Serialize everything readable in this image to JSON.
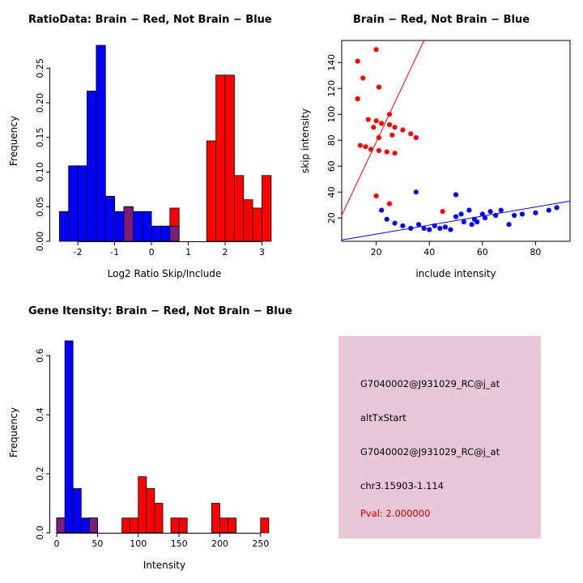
{
  "colors": {
    "red": "#ff0000",
    "blue": "#0000ff",
    "purple": "#7a1e7a",
    "info_bg": "#e8c7d8",
    "pval": "#c00000"
  },
  "chart_data": [
    {
      "type": "bar",
      "title": "RatioData: Brain − Red, Not Brain − Blue",
      "xlabel": "Log2 Ratio Skip/Include",
      "ylabel": "Frequency",
      "xlim": [
        -2.75,
        3.45
      ],
      "ylim": [
        0,
        0.29
      ],
      "xticks": [
        -2,
        -1,
        0,
        1,
        2,
        3
      ],
      "xtick_labels": [
        "-2",
        "-1",
        "0",
        "1",
        "2",
        "3"
      ],
      "yticks": [
        0,
        0.05,
        0.1,
        0.15,
        0.2,
        0.25
      ],
      "ytick_labels": [
        "0.00",
        "0.05",
        "0.10",
        "0.15",
        "0.20",
        "0.25"
      ],
      "grid": false,
      "bin_width": 0.25,
      "series": [
        {
          "name": "not-brain-blue",
          "color": "blue",
          "bars": [
            [
              -2.5,
              0.043
            ],
            [
              -2.25,
              0.109
            ],
            [
              -2.0,
              0.109
            ],
            [
              -1.75,
              0.217
            ],
            [
              -1.5,
              0.283
            ],
            [
              -1.25,
              0.065
            ],
            [
              -1.0,
              0.043
            ],
            [
              -0.75,
              0.05
            ],
            [
              -0.5,
              0.043
            ],
            [
              -0.25,
              0.043
            ],
            [
              0.0,
              0.022
            ],
            [
              0.25,
              0.022
            ]
          ]
        },
        {
          "name": "brain-red",
          "color": "red",
          "bars": [
            [
              0.5,
              0.048
            ],
            [
              1.5,
              0.145
            ],
            [
              1.75,
              0.24
            ],
            [
              2.0,
              0.24
            ],
            [
              2.25,
              0.095
            ],
            [
              2.5,
              0.06
            ],
            [
              2.75,
              0.048
            ],
            [
              3.0,
              0.095
            ]
          ]
        },
        {
          "name": "overlap-purple",
          "color": "purple",
          "bars": [
            [
              -0.75,
              0.05
            ],
            [
              0.5,
              0.022
            ]
          ]
        }
      ]
    },
    {
      "type": "scatter",
      "title": "Brain − Red, Not Brain − Blue",
      "xlabel": "include intensity",
      "ylabel": "skip intensity",
      "frame": true,
      "grid": false,
      "xlim": [
        7,
        93
      ],
      "ylim": [
        2,
        157
      ],
      "xticks": [
        20,
        40,
        60,
        80
      ],
      "xtick_labels": [
        "20",
        "40",
        "60",
        "80"
      ],
      "yticks": [
        20,
        40,
        60,
        80,
        100,
        120,
        140
      ],
      "ytick_labels": [
        "20",
        "40",
        "60",
        "80",
        "100",
        "120",
        "140"
      ],
      "lines": [
        {
          "name": "brain-fit-line",
          "color": "red",
          "from": [
            7,
            22
          ],
          "to": [
            38,
            157
          ]
        },
        {
          "name": "not-brain-fit-line",
          "color": "blue",
          "from": [
            7,
            3
          ],
          "to": [
            93,
            33
          ]
        }
      ],
      "series": [
        {
          "name": "brain-red",
          "color": "red",
          "points": [
            [
              20,
              150
            ],
            [
              13,
              141
            ],
            [
              15,
              128
            ],
            [
              21,
              121
            ],
            [
              13,
              112
            ],
            [
              25,
              100
            ],
            [
              17,
              96
            ],
            [
              20,
              95
            ],
            [
              22,
              93
            ],
            [
              25,
              92
            ],
            [
              19,
              90
            ],
            [
              27,
              90
            ],
            [
              30,
              88
            ],
            [
              33,
              85
            ],
            [
              26,
              84
            ],
            [
              21,
              82
            ],
            [
              35,
              82
            ],
            [
              14,
              76
            ],
            [
              16,
              75
            ],
            [
              18,
              73
            ],
            [
              21,
              72
            ],
            [
              24,
              71
            ],
            [
              27,
              70
            ],
            [
              20,
              37
            ],
            [
              25,
              31
            ],
            [
              45,
              25
            ]
          ]
        },
        {
          "name": "not-brain-blue",
          "color": "blue",
          "points": [
            [
              22,
              26
            ],
            [
              24,
              19
            ],
            [
              27,
              16
            ],
            [
              30,
              14
            ],
            [
              33,
              12
            ],
            [
              35,
              40
            ],
            [
              36,
              15
            ],
            [
              38,
              12
            ],
            [
              40,
              11
            ],
            [
              42,
              14
            ],
            [
              44,
              12
            ],
            [
              46,
              13
            ],
            [
              48,
              11
            ],
            [
              50,
              38
            ],
            [
              50,
              21
            ],
            [
              52,
              23
            ],
            [
              53,
              17
            ],
            [
              55,
              26
            ],
            [
              56,
              15
            ],
            [
              57,
              19
            ],
            [
              58,
              17
            ],
            [
              60,
              23
            ],
            [
              61,
              20
            ],
            [
              63,
              25
            ],
            [
              65,
              22
            ],
            [
              67,
              26
            ],
            [
              70,
              15
            ],
            [
              72,
              22
            ],
            [
              75,
              23
            ],
            [
              80,
              24
            ],
            [
              85,
              26
            ],
            [
              88,
              28
            ]
          ]
        }
      ]
    },
    {
      "type": "bar",
      "title": "Gene Itensity: Brain − Red, Not Brain − Blue",
      "xlabel": "Intensity",
      "ylabel": "Frequency",
      "xlim": [
        -8,
        272
      ],
      "ylim": [
        0,
        0.68
      ],
      "xticks": [
        0,
        50,
        100,
        150,
        200,
        250
      ],
      "xtick_labels": [
        "0",
        "50",
        "100",
        "150",
        "200",
        "250"
      ],
      "yticks": [
        0,
        0.2,
        0.4,
        0.6
      ],
      "ytick_labels": [
        "0.0",
        "0.2",
        "0.4",
        "0.6"
      ],
      "grid": false,
      "bin_width": 10,
      "series": [
        {
          "name": "not-brain-blue",
          "color": "blue",
          "bars": [
            [
              0,
              0.05
            ],
            [
              10,
              0.65
            ],
            [
              20,
              0.15
            ],
            [
              30,
              0.05
            ],
            [
              40,
              0.05
            ]
          ]
        },
        {
          "name": "brain-red",
          "color": "red",
          "bars": [
            [
              0,
              0.05
            ],
            [
              40,
              0.05
            ],
            [
              80,
              0.05
            ],
            [
              90,
              0.05
            ],
            [
              100,
              0.19
            ],
            [
              110,
              0.15
            ],
            [
              120,
              0.1
            ],
            [
              140,
              0.05
            ],
            [
              150,
              0.05
            ],
            [
              190,
              0.1
            ],
            [
              200,
              0.05
            ],
            [
              210,
              0.05
            ],
            [
              250,
              0.05
            ]
          ]
        },
        {
          "name": "overlap-purple",
          "color": "purple",
          "bars": [
            [
              0,
              0.05
            ],
            [
              40,
              0.05
            ]
          ]
        }
      ]
    }
  ],
  "info_box": {
    "lines": [
      "G7040002@J931029_RC@j_at",
      "altTxStart",
      "G7040002@J931029_RC@j_at",
      "chr3.15903-1.114"
    ],
    "pval": "Pval: 2.000000"
  }
}
